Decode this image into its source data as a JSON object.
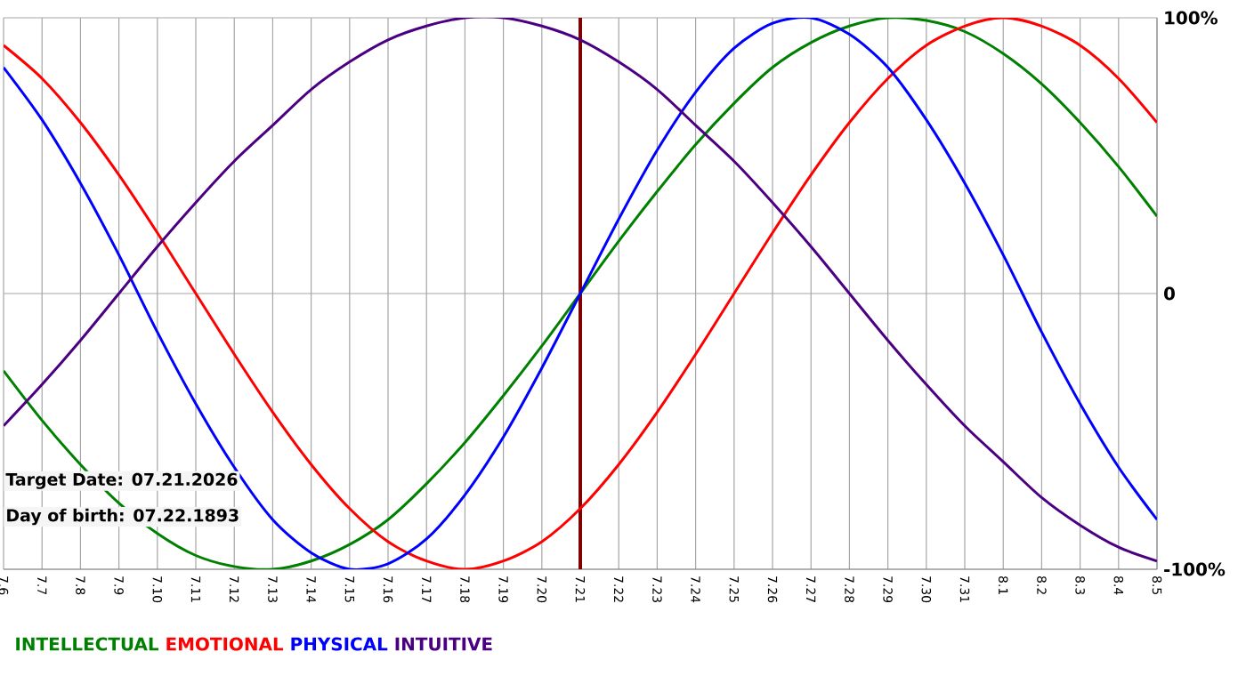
{
  "chart_data": {
    "type": "line",
    "categories": [
      "7.6",
      "7.7",
      "7.8",
      "7.9",
      "7.10",
      "7.11",
      "7.12",
      "7.13",
      "7.14",
      "7.15",
      "7.16",
      "7.17",
      "7.18",
      "7.19",
      "7.20",
      "7.21",
      "7.22",
      "7.23",
      "7.24",
      "7.25",
      "7.26",
      "7.27",
      "7.28",
      "7.29",
      "7.30",
      "7.31",
      "8.1",
      "8.2",
      "8.3",
      "8.4",
      "8.5"
    ],
    "series": [
      {
        "name": "INTELLECTUAL",
        "color": "#008000",
        "values": [
          -28,
          -46,
          -62,
          -76,
          -87,
          -95,
          -99,
          -100,
          -97,
          -91,
          -82,
          -69,
          -54,
          -37,
          -19,
          0,
          19,
          37,
          54,
          69,
          82,
          91,
          97,
          100,
          99,
          95,
          87,
          76,
          62,
          46,
          28
        ]
      },
      {
        "name": "EMOTIONAL",
        "color": "#ff0000",
        "values": [
          90,
          78,
          62,
          43,
          22,
          0,
          -22,
          -43,
          -62,
          -78,
          -90,
          -97,
          -100,
          -97,
          -90,
          -78,
          -62,
          -43,
          -22,
          0,
          22,
          43,
          62,
          78,
          90,
          97,
          100,
          97,
          90,
          78,
          62
        ]
      },
      {
        "name": "PHYSICAL",
        "color": "#0000ff",
        "values": [
          82,
          63,
          40,
          14,
          -14,
          -40,
          -63,
          -82,
          -94,
          -100,
          -98,
          -89,
          -73,
          -52,
          -27,
          0,
          27,
          52,
          73,
          89,
          98,
          100,
          94,
          82,
          63,
          40,
          14,
          -14,
          -40,
          -63,
          -82
        ]
      },
      {
        "name": "INTUITIVE",
        "color": "#4b0082",
        "values": [
          -48,
          -33,
          -17,
          0,
          17,
          33,
          48,
          61,
          74,
          84,
          92,
          97,
          100,
          100,
          97,
          92,
          84,
          74,
          61,
          48,
          33,
          17,
          0,
          -17,
          -33,
          -48,
          -61,
          -74,
          -84,
          -92,
          -97
        ]
      }
    ],
    "ylim": [
      -100,
      100
    ],
    "yticks": [
      {
        "value": 100,
        "label": "100%"
      },
      0,
      {
        "value": -100,
        "label": "-100%"
      }
    ],
    "grid": true,
    "legend": "bottom",
    "marker": "none",
    "line_style": "solid",
    "ref_lines": [
      {
        "axis": "x",
        "value": "7.21",
        "color": "#800000"
      }
    ],
    "annotations": [
      "Target Date: 07.21.2026",
      "Day of birth: 07.22.1893"
    ]
  }
}
